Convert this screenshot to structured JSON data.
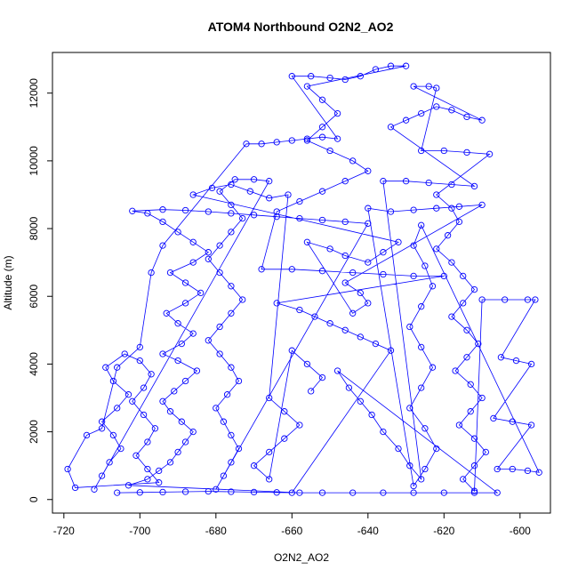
{
  "chart_data": {
    "type": "scatter",
    "title": "ATOM4 Northbound O2N2_AO2",
    "xlabel": "O2N2_AO2",
    "ylabel": "Altitude (m)",
    "xlim": [
      -723,
      -592
    ],
    "ylim": [
      -400,
      13200
    ],
    "x_ticks": [
      -720,
      -700,
      -680,
      -660,
      -640,
      -620,
      -600
    ],
    "y_ticks": [
      0,
      2000,
      4000,
      6000,
      8000,
      10000,
      12000
    ],
    "x_tick_labels": [
      "-720",
      "-700",
      "-680",
      "-660",
      "-640",
      "-620",
      "-600"
    ],
    "y_tick_labels": [
      "0",
      "2000",
      "4000",
      "6000",
      "8000",
      "10000",
      "12000"
    ],
    "grid": false,
    "legend": "none",
    "marker": "open-circle",
    "connected": true,
    "color": "#0000ff",
    "series": [
      {
        "points": [
          [
            -706,
            200
          ],
          [
            -700,
            210
          ],
          [
            -694,
            220
          ],
          [
            -688,
            230
          ],
          [
            -682,
            240
          ],
          [
            -676,
            230
          ],
          [
            -670,
            220
          ],
          [
            -664,
            210
          ],
          [
            -658,
            200
          ],
          [
            -703,
            420
          ],
          [
            -698,
            600
          ],
          [
            -695,
            850
          ],
          [
            -692,
            1100
          ],
          [
            -690,
            1400
          ],
          [
            -688,
            1700
          ],
          [
            -686,
            2000
          ],
          [
            -689,
            2300
          ],
          [
            -692,
            2600
          ],
          [
            -694,
            2900
          ],
          [
            -691,
            3200
          ],
          [
            -688,
            3500
          ],
          [
            -685,
            3800
          ],
          [
            -690,
            4100
          ],
          [
            -694,
            4300
          ],
          [
            -689,
            4600
          ],
          [
            -686,
            4900
          ],
          [
            -690,
            5200
          ],
          [
            -693,
            5500
          ],
          [
            -688,
            5800
          ],
          [
            -684,
            6100
          ],
          [
            -688,
            6400
          ],
          [
            -692,
            6700
          ],
          [
            -686,
            7000
          ],
          [
            -682,
            7300
          ],
          [
            -686,
            7600
          ],
          [
            -690,
            7900
          ],
          [
            -694,
            8200
          ],
          [
            -698,
            8450
          ],
          [
            -702,
            8520
          ],
          [
            -694,
            8560
          ],
          [
            -688,
            8540
          ],
          [
            -682,
            8500
          ],
          [
            -676,
            8450
          ],
          [
            -670,
            8400
          ],
          [
            -664,
            8350
          ],
          [
            -658,
            8300
          ],
          [
            -652,
            8250
          ],
          [
            -646,
            8200
          ],
          [
            -640,
            8150
          ],
          [
            -680,
            300
          ],
          [
            -678,
            700
          ],
          [
            -676,
            1100
          ],
          [
            -674,
            1500
          ],
          [
            -676,
            1900
          ],
          [
            -678,
            2300
          ],
          [
            -680,
            2700
          ],
          [
            -677,
            3100
          ],
          [
            -674,
            3500
          ],
          [
            -676,
            3900
          ],
          [
            -679,
            4300
          ],
          [
            -682,
            4700
          ],
          [
            -679,
            5100
          ],
          [
            -676,
            5500
          ],
          [
            -673,
            5900
          ],
          [
            -676,
            6300
          ],
          [
            -679,
            6700
          ],
          [
            -682,
            7100
          ],
          [
            -679,
            7500
          ],
          [
            -676,
            7900
          ],
          [
            -673,
            8300
          ],
          [
            -676,
            8700
          ],
          [
            -679,
            9100
          ],
          [
            -675,
            9450
          ],
          [
            -670,
            9450
          ],
          [
            -666,
            9400
          ],
          [
            -712,
            300
          ],
          [
            -710,
            700
          ],
          [
            -708,
            1100
          ],
          [
            -705,
            1500
          ],
          [
            -707,
            1900
          ],
          [
            -710,
            2300
          ],
          [
            -706,
            2700
          ],
          [
            -703,
            3100
          ],
          [
            -707,
            3500
          ],
          [
            -709,
            3900
          ],
          [
            -704,
            4300
          ],
          [
            -700,
            4100
          ],
          [
            -697,
            3700
          ],
          [
            -699,
            3300
          ],
          [
            -702,
            2900
          ],
          [
            -699,
            2500
          ],
          [
            -696,
            2100
          ],
          [
            -698,
            1700
          ],
          [
            -701,
            1300
          ],
          [
            -698,
            900
          ],
          [
            -695,
            500
          ],
          [
            -717,
            350
          ],
          [
            -719,
            900
          ],
          [
            -714,
            1900
          ],
          [
            -710,
            2100
          ],
          [
            -706,
            3900
          ],
          [
            -700,
            4500
          ],
          [
            -697,
            6700
          ],
          [
            -694,
            7500
          ],
          [
            -672,
            10500
          ],
          [
            -668,
            10500
          ],
          [
            -664,
            10550
          ],
          [
            -660,
            10600
          ],
          [
            -656,
            10650
          ],
          [
            -652,
            10700
          ],
          [
            -648,
            10650
          ],
          [
            -660,
            12500
          ],
          [
            -655,
            12500
          ],
          [
            -650,
            12450
          ],
          [
            -646,
            12400
          ],
          [
            -642,
            12500
          ],
          [
            -638,
            12700
          ],
          [
            -634,
            12800
          ],
          [
            -630,
            12800
          ],
          [
            -656,
            12200
          ],
          [
            -652,
            11800
          ],
          [
            -648,
            11400
          ],
          [
            -652,
            11000
          ],
          [
            -656,
            10600
          ],
          [
            -650,
            10300
          ],
          [
            -644,
            10000
          ],
          [
            -640,
            9700
          ],
          [
            -646,
            9400
          ],
          [
            -652,
            9100
          ],
          [
            -658,
            8800
          ],
          [
            -664,
            8500
          ],
          [
            -668,
            6800
          ],
          [
            -660,
            6800
          ],
          [
            -652,
            6750
          ],
          [
            -644,
            6700
          ],
          [
            -636,
            6650
          ],
          [
            -628,
            6600
          ],
          [
            -620,
            6600
          ],
          [
            -664,
            5800
          ],
          [
            -658,
            5600
          ],
          [
            -654,
            5400
          ],
          [
            -650,
            5200
          ],
          [
            -646,
            5000
          ],
          [
            -642,
            4800
          ],
          [
            -638,
            4600
          ],
          [
            -634,
            4400
          ],
          [
            -660,
            200
          ],
          [
            -652,
            200
          ],
          [
            -644,
            200
          ],
          [
            -636,
            200
          ],
          [
            -628,
            200
          ],
          [
            -620,
            200
          ],
          [
            -612,
            200
          ],
          [
            -606,
            200
          ],
          [
            -648,
            3800
          ],
          [
            -645,
            3300
          ],
          [
            -642,
            2900
          ],
          [
            -639,
            2500
          ],
          [
            -636,
            2000
          ],
          [
            -632,
            1500
          ],
          [
            -629,
            1000
          ],
          [
            -626,
            600
          ],
          [
            -636,
            9400
          ],
          [
            -630,
            9400
          ],
          [
            -624,
            9350
          ],
          [
            -618,
            9300
          ],
          [
            -612,
            9250
          ],
          [
            -634,
            11000
          ],
          [
            -630,
            11200
          ],
          [
            -626,
            11400
          ],
          [
            -622,
            11600
          ],
          [
            -618,
            11500
          ],
          [
            -614,
            11300
          ],
          [
            -610,
            11200
          ],
          [
            -628,
            12200
          ],
          [
            -624,
            12200
          ],
          [
            -622,
            12150
          ],
          [
            -626,
            10300
          ],
          [
            -620,
            10300
          ],
          [
            -614,
            10250
          ],
          [
            -608,
            10200
          ],
          [
            -622,
            9000
          ],
          [
            -618,
            8600
          ],
          [
            -616,
            8200
          ],
          [
            -619,
            7800
          ],
          [
            -622,
            7400
          ],
          [
            -618,
            7000
          ],
          [
            -615,
            6600
          ],
          [
            -612,
            6200
          ],
          [
            -615,
            5800
          ],
          [
            -618,
            5400
          ],
          [
            -614,
            5000
          ],
          [
            -611,
            4600
          ],
          [
            -614,
            4200
          ],
          [
            -617,
            3800
          ],
          [
            -613,
            3400
          ],
          [
            -610,
            3000
          ],
          [
            -613,
            2600
          ],
          [
            -616,
            2200
          ],
          [
            -612,
            1800
          ],
          [
            -609,
            1400
          ],
          [
            -612,
            1000
          ],
          [
            -615,
            600
          ],
          [
            -612,
            250
          ],
          [
            -610,
            5900
          ],
          [
            -604,
            5900
          ],
          [
            -598,
            5900
          ],
          [
            -596,
            5900
          ],
          [
            -605,
            4200
          ],
          [
            -601,
            4100
          ],
          [
            -597,
            4000
          ],
          [
            -607,
            2400
          ],
          [
            -602,
            2300
          ],
          [
            -597,
            2200
          ],
          [
            -606,
            900
          ],
          [
            -602,
            900
          ],
          [
            -598,
            850
          ],
          [
            -595,
            800
          ],
          [
            -626,
            8100
          ],
          [
            -628,
            7500
          ],
          [
            -625,
            6900
          ],
          [
            -623,
            6300
          ],
          [
            -626,
            5700
          ],
          [
            -629,
            5100
          ],
          [
            -626,
            4500
          ],
          [
            -623,
            3900
          ],
          [
            -626,
            3300
          ],
          [
            -629,
            2700
          ],
          [
            -625,
            2100
          ],
          [
            -622,
            1500
          ],
          [
            -625,
            900
          ],
          [
            -628,
            400
          ],
          [
            -640,
            8600
          ],
          [
            -634,
            8500
          ],
          [
            -628,
            8550
          ],
          [
            -622,
            8600
          ],
          [
            -616,
            8650
          ],
          [
            -610,
            8700
          ],
          [
            -646,
            6400
          ],
          [
            -642,
            6100
          ],
          [
            -640,
            5800
          ],
          [
            -644,
            5500
          ],
          [
            -656,
            7600
          ],
          [
            -650,
            7400
          ],
          [
            -646,
            7200
          ],
          [
            -640,
            7000
          ],
          [
            -636,
            7300
          ],
          [
            -632,
            7600
          ],
          [
            -686,
            9000
          ],
          [
            -681,
            9200
          ],
          [
            -676,
            9300
          ],
          [
            -671,
            9100
          ],
          [
            -666,
            8900
          ],
          [
            -661,
            9000
          ],
          [
            -666,
            3000
          ],
          [
            -662,
            2600
          ],
          [
            -658,
            2200
          ],
          [
            -662,
            1800
          ],
          [
            -666,
            1400
          ],
          [
            -670,
            1000
          ],
          [
            -666,
            600
          ],
          [
            -660,
            4400
          ],
          [
            -656,
            4000
          ],
          [
            -652,
            3600
          ],
          [
            -655,
            3200
          ]
        ]
      }
    ]
  }
}
